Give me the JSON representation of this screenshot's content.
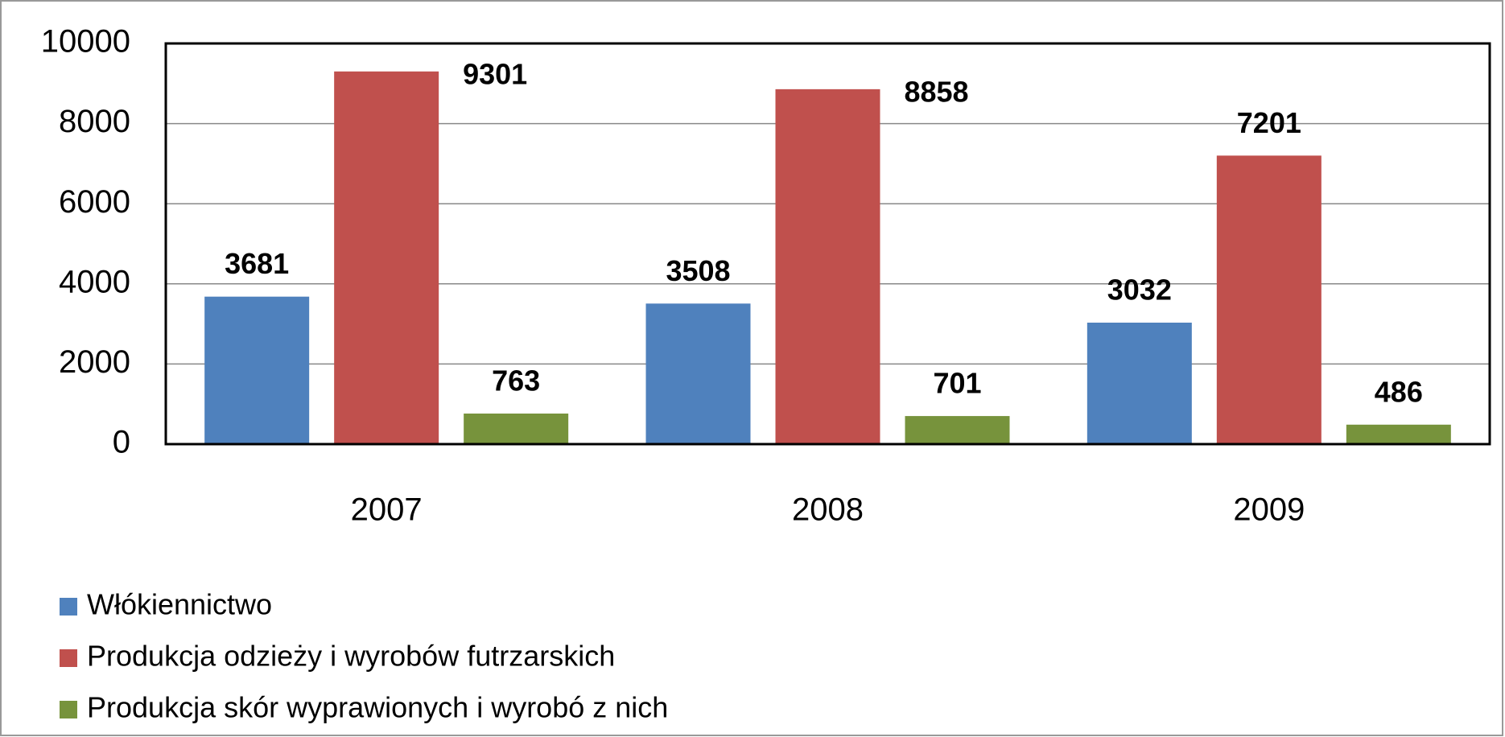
{
  "chart_data": {
    "type": "bar",
    "categories": [
      "2007",
      "2008",
      "2009"
    ],
    "series": [
      {
        "name": "Włókiennictwo",
        "color": "#4f81bd",
        "values": [
          3681,
          3508,
          3032
        ]
      },
      {
        "name": "Produkcja odzieży i wyrobów futrzarskich",
        "color": "#c0504d",
        "values": [
          9301,
          8858,
          7201
        ]
      },
      {
        "name": "Produkcja skór wyprawionych i wyrobó z nich",
        "color": "#77933c",
        "values": [
          763,
          701,
          486
        ]
      }
    ],
    "ylim": [
      0,
      10000
    ],
    "yticks": [
      0,
      2000,
      4000,
      6000,
      8000,
      10000
    ],
    "grid": true,
    "legend": "bottom"
  }
}
